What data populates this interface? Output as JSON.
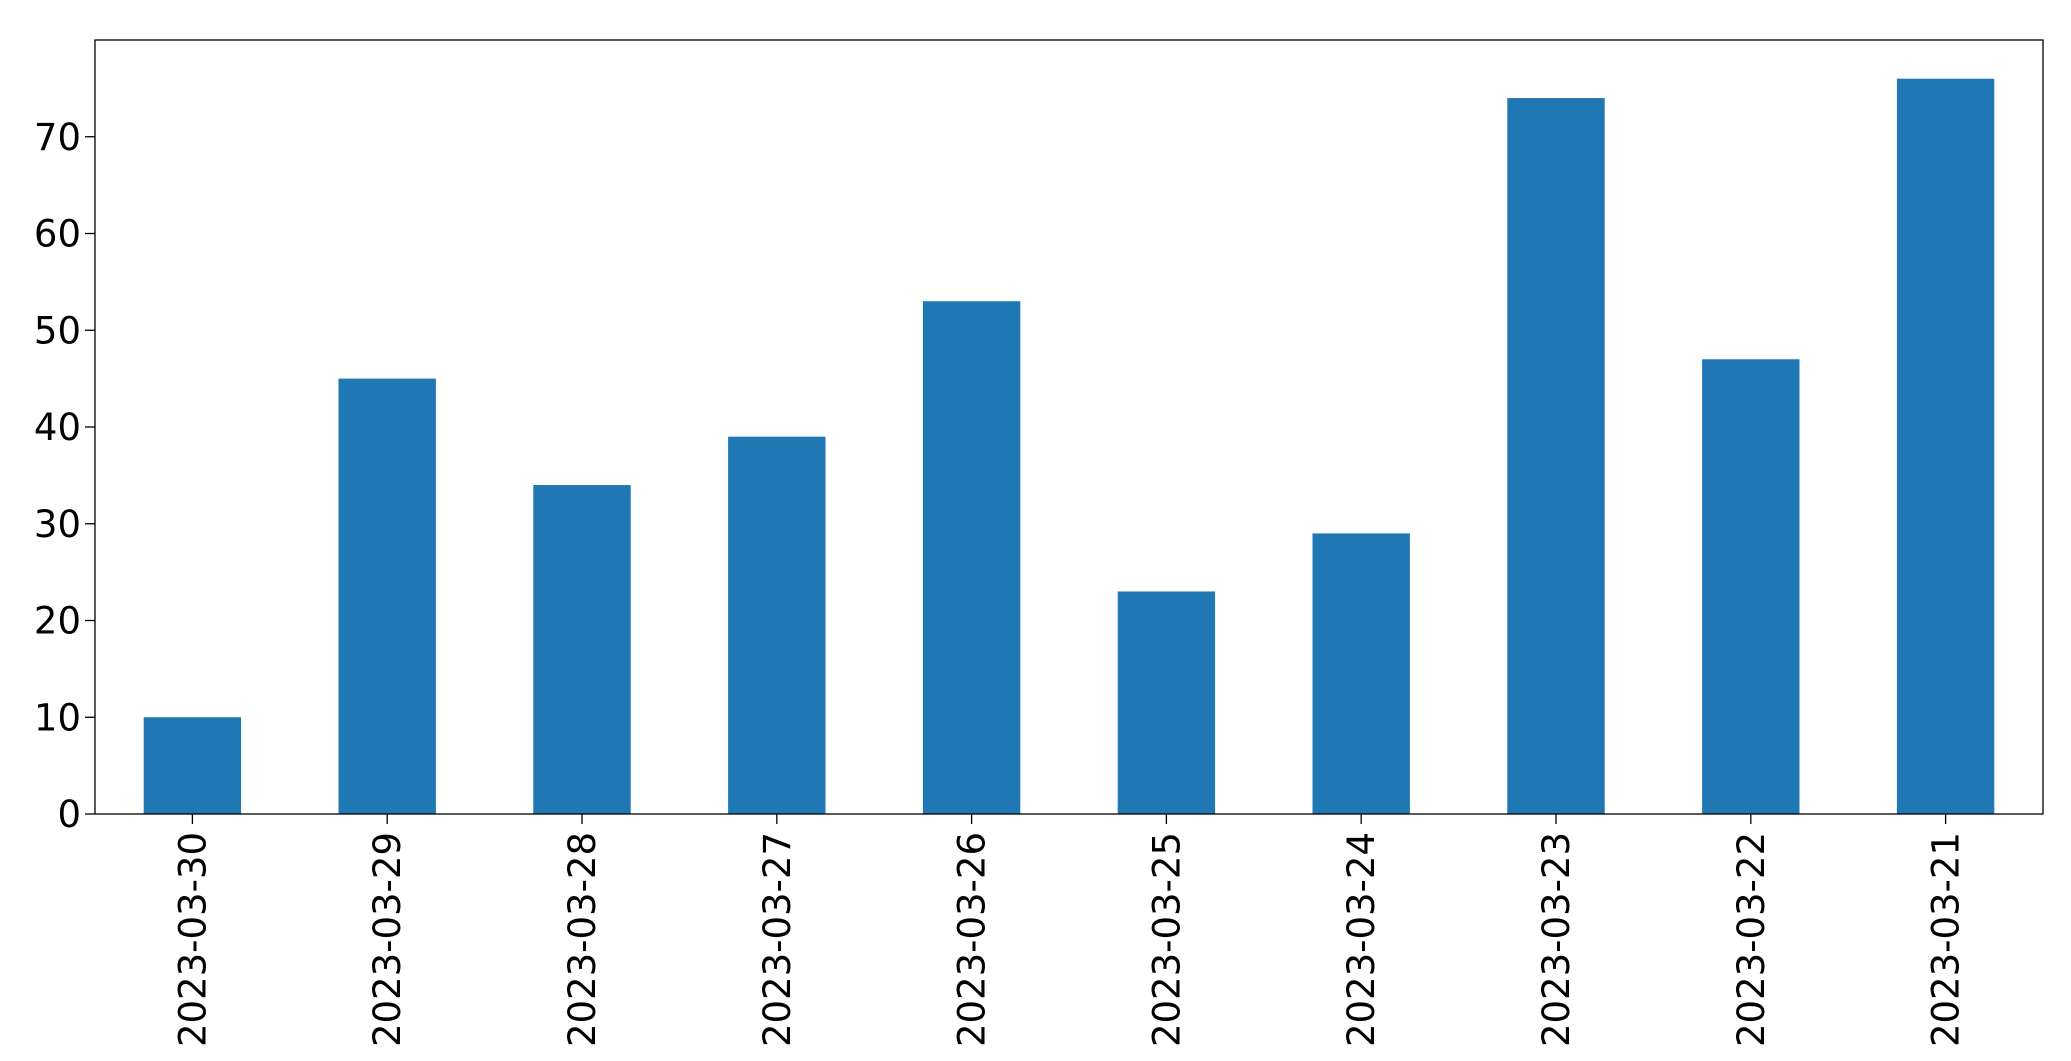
{
  "chart_data": {
    "type": "bar",
    "categories": [
      "2023-03-30",
      "2023-03-29",
      "2023-03-28",
      "2023-03-27",
      "2023-03-26",
      "2023-03-25",
      "2023-03-24",
      "2023-03-23",
      "2023-03-22",
      "2023-03-21"
    ],
    "values": [
      10,
      45,
      34,
      39,
      53,
      23,
      29,
      74,
      47,
      76
    ],
    "title": "",
    "xlabel": "",
    "ylabel": "",
    "ylim": [
      0,
      80
    ],
    "yticks": [
      0,
      10,
      20,
      30,
      40,
      50,
      60,
      70
    ],
    "bar_color": "#1f77b4",
    "grid": false,
    "legend": "none"
  }
}
